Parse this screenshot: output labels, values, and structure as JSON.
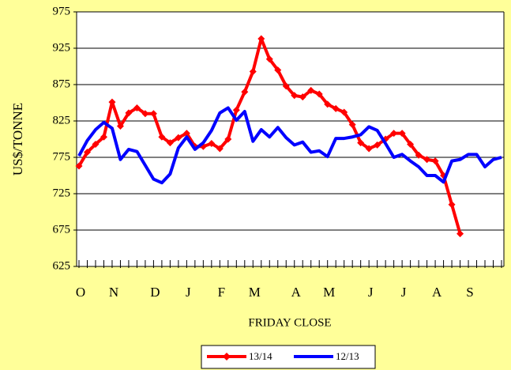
{
  "chart_data": {
    "type": "line",
    "y_label": "US$/TONNE",
    "x_label": "FRIDAY CLOSE",
    "categories": [
      "O",
      null,
      null,
      null,
      "N",
      null,
      null,
      null,
      null,
      "D",
      null,
      null,
      null,
      "J",
      null,
      null,
      null,
      "F",
      null,
      null,
      null,
      "M",
      null,
      null,
      null,
      null,
      "A",
      null,
      null,
      null,
      "M",
      null,
      null,
      null,
      null,
      "J",
      null,
      null,
      null,
      "J",
      null,
      null,
      null,
      "A",
      null,
      null,
      null,
      "S",
      null,
      null,
      null,
      null
    ],
    "series": [
      {
        "name": "13/14",
        "color": "#ff0000",
        "marker": "diamond",
        "values": [
          763,
          782,
          793,
          803,
          851,
          818,
          836,
          843,
          835,
          835,
          803,
          795,
          802,
          808,
          790,
          790,
          794,
          787,
          800,
          840,
          865,
          893,
          938,
          910,
          895,
          873,
          860,
          858,
          867,
          862,
          848,
          842,
          837,
          820,
          795,
          787,
          792,
          800,
          808,
          808,
          793,
          778,
          772,
          770,
          750,
          710,
          670,
          null,
          null,
          null,
          null,
          null
        ]
      },
      {
        "name": "12/13",
        "color": "#0000ff",
        "values": [
          777,
          798,
          813,
          823,
          815,
          772,
          786,
          783,
          764,
          745,
          740,
          752,
          788,
          803,
          786,
          795,
          812,
          836,
          843,
          826,
          838,
          797,
          813,
          803,
          816,
          802,
          792,
          796,
          782,
          784,
          776,
          801,
          801,
          803,
          806,
          817,
          812,
          794,
          775,
          779,
          770,
          762,
          750,
          750,
          741,
          770,
          772,
          779,
          779,
          762,
          772,
          775
        ]
      }
    ],
    "ylim": [
      625,
      975
    ],
    "yticks": [
      625,
      675,
      725,
      775,
      825,
      875,
      925,
      975
    ],
    "grid": true,
    "legend": "bottom"
  }
}
